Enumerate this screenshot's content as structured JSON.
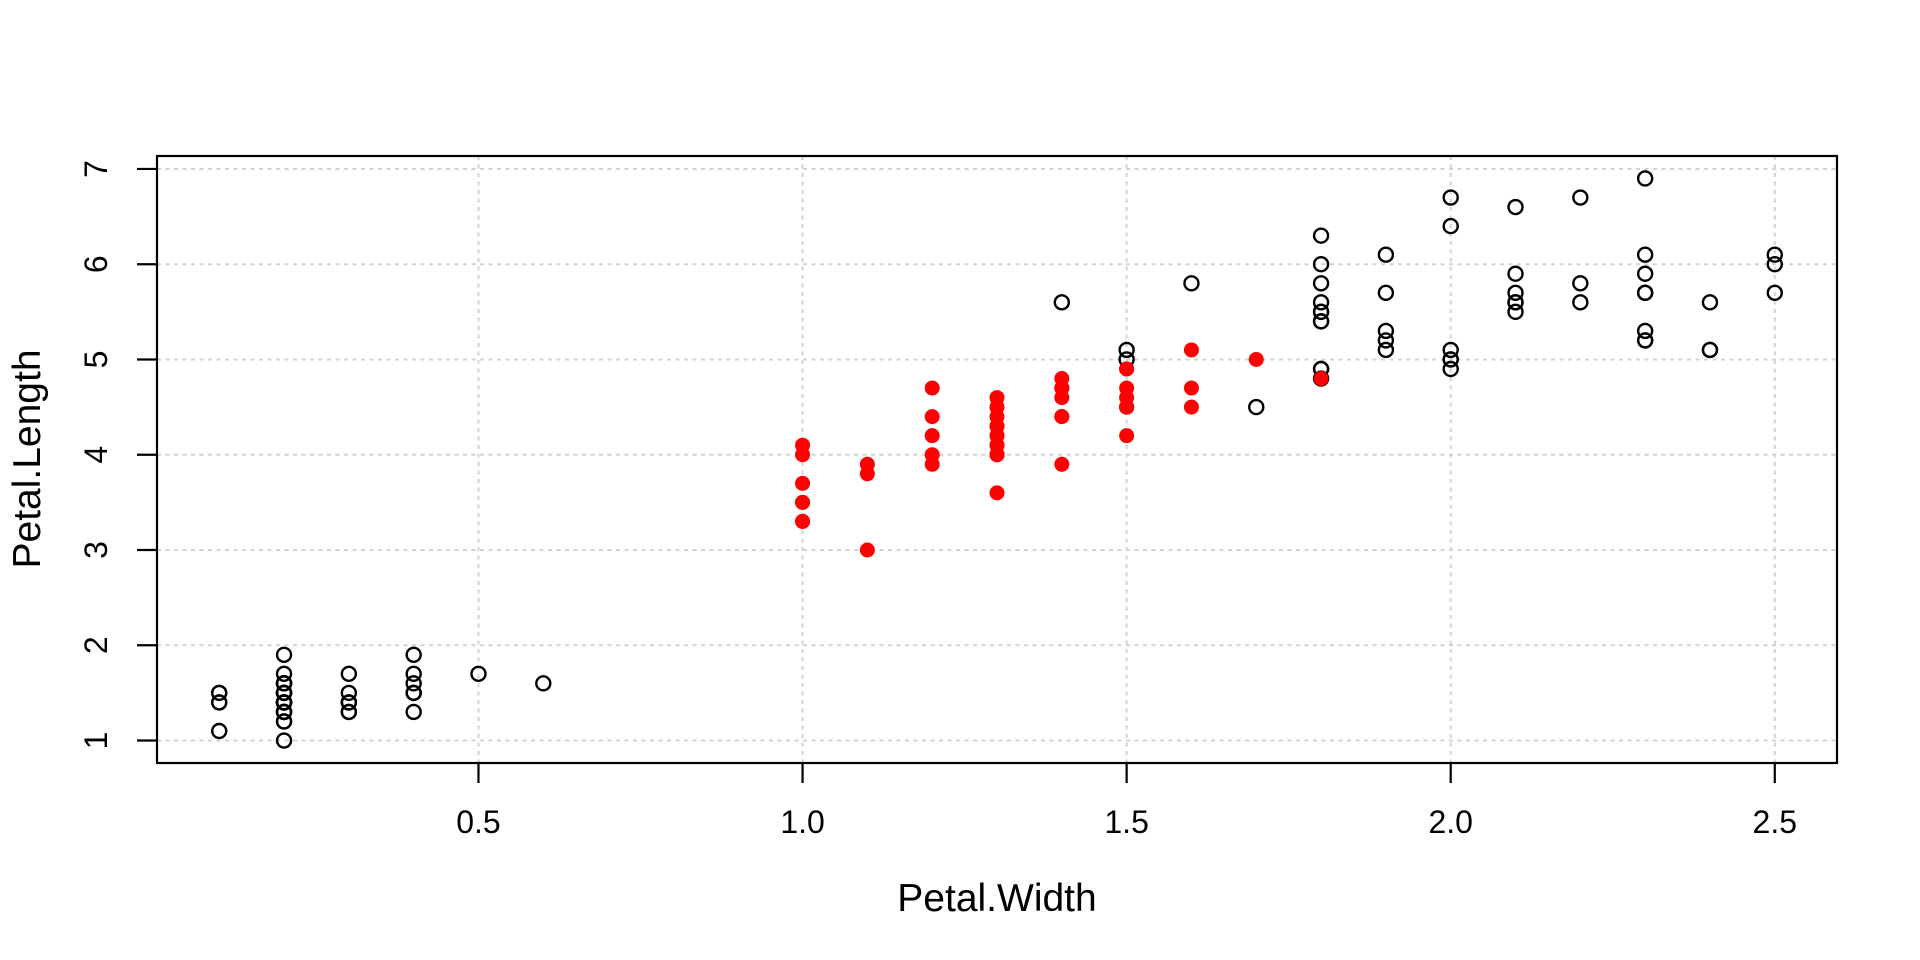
{
  "figure": {
    "background": "#FFFFFF",
    "title": ""
  },
  "chart_data": {
    "type": "scatter",
    "title": "",
    "xlabel": "Petal.Width",
    "ylabel": "Petal.Length",
    "xlim": [
      0.004,
      2.596
    ],
    "ylim": [
      0.764,
      7.136
    ],
    "x_ticks": [
      0.5,
      1.0,
      1.5,
      2.0,
      2.5
    ],
    "x_tick_labels": [
      "0.5",
      "1.0",
      "1.5",
      "2.0",
      "2.5"
    ],
    "y_ticks": [
      1,
      2,
      3,
      4,
      5,
      6,
      7
    ],
    "y_tick_labels": [
      "1",
      "2",
      "3",
      "4",
      "5",
      "6",
      "7"
    ],
    "grid": {
      "visible": true,
      "style": "dashed",
      "color": "#D3D3D3"
    },
    "axis_color": "#000000",
    "legend": {
      "visible": false
    },
    "series": [
      {
        "name": "black-open-circles",
        "marker": "open-circle",
        "color": "#000000",
        "points": [
          [
            0.2,
            1.4
          ],
          [
            0.2,
            1.4
          ],
          [
            0.2,
            1.3
          ],
          [
            0.2,
            1.5
          ],
          [
            0.2,
            1.4
          ],
          [
            0.4,
            1.7
          ],
          [
            0.3,
            1.4
          ],
          [
            0.2,
            1.5
          ],
          [
            0.2,
            1.4
          ],
          [
            0.1,
            1.5
          ],
          [
            0.2,
            1.5
          ],
          [
            0.2,
            1.6
          ],
          [
            0.1,
            1.4
          ],
          [
            0.1,
            1.1
          ],
          [
            0.2,
            1.2
          ],
          [
            0.4,
            1.5
          ],
          [
            0.4,
            1.3
          ],
          [
            0.3,
            1.4
          ],
          [
            0.3,
            1.7
          ],
          [
            0.3,
            1.5
          ],
          [
            0.2,
            1.7
          ],
          [
            0.4,
            1.5
          ],
          [
            0.2,
            1.0
          ],
          [
            0.5,
            1.7
          ],
          [
            0.2,
            1.9
          ],
          [
            0.2,
            1.6
          ],
          [
            0.4,
            1.6
          ],
          [
            0.2,
            1.5
          ],
          [
            0.2,
            1.4
          ],
          [
            0.2,
            1.6
          ],
          [
            0.2,
            1.6
          ],
          [
            0.4,
            1.5
          ],
          [
            0.1,
            1.5
          ],
          [
            0.2,
            1.4
          ],
          [
            0.2,
            1.5
          ],
          [
            0.2,
            1.2
          ],
          [
            0.2,
            1.3
          ],
          [
            0.1,
            1.4
          ],
          [
            0.2,
            1.3
          ],
          [
            0.2,
            1.5
          ],
          [
            0.3,
            1.3
          ],
          [
            0.3,
            1.3
          ],
          [
            0.2,
            1.3
          ],
          [
            0.6,
            1.6
          ],
          [
            0.4,
            1.9
          ],
          [
            0.3,
            1.4
          ],
          [
            0.2,
            1.6
          ],
          [
            0.2,
            1.4
          ],
          [
            0.2,
            1.5
          ],
          [
            0.2,
            1.4
          ],
          [
            2.5,
            6.0
          ],
          [
            1.9,
            5.1
          ],
          [
            2.1,
            5.9
          ],
          [
            1.8,
            5.6
          ],
          [
            2.2,
            5.8
          ],
          [
            2.1,
            6.6
          ],
          [
            1.7,
            4.5
          ],
          [
            1.8,
            6.3
          ],
          [
            1.8,
            5.8
          ],
          [
            2.5,
            6.1
          ],
          [
            2.0,
            5.1
          ],
          [
            1.9,
            5.3
          ],
          [
            2.1,
            5.5
          ],
          [
            2.0,
            5.0
          ],
          [
            2.4,
            5.1
          ],
          [
            2.3,
            5.3
          ],
          [
            1.8,
            5.5
          ],
          [
            2.2,
            6.7
          ],
          [
            2.3,
            6.9
          ],
          [
            1.5,
            5.0
          ],
          [
            2.3,
            5.7
          ],
          [
            2.0,
            4.9
          ],
          [
            2.0,
            6.7
          ],
          [
            1.8,
            4.9
          ],
          [
            2.1,
            5.7
          ],
          [
            1.8,
            6.0
          ],
          [
            1.8,
            4.8
          ],
          [
            1.8,
            4.9
          ],
          [
            2.1,
            5.6
          ],
          [
            1.6,
            5.8
          ],
          [
            1.9,
            6.1
          ],
          [
            2.0,
            6.4
          ],
          [
            2.2,
            5.6
          ],
          [
            1.5,
            5.1
          ],
          [
            1.4,
            5.6
          ],
          [
            2.3,
            6.1
          ],
          [
            2.4,
            5.6
          ],
          [
            1.8,
            5.5
          ],
          [
            1.8,
            5.4
          ],
          [
            2.1,
            5.6
          ],
          [
            2.4,
            5.1
          ],
          [
            2.3,
            5.9
          ],
          [
            1.9,
            5.7
          ],
          [
            2.3,
            5.2
          ],
          [
            2.5,
            5.7
          ],
          [
            2.3,
            5.7
          ],
          [
            1.9,
            5.2
          ],
          [
            2.0,
            5.0
          ],
          [
            2.3,
            5.2
          ],
          [
            1.8,
            5.4
          ]
        ]
      },
      {
        "name": "red-filled-circles",
        "marker": "filled-circle",
        "color": "#FE0000",
        "points": [
          [
            1.4,
            4.7
          ],
          [
            1.5,
            4.5
          ],
          [
            1.5,
            4.9
          ],
          [
            1.3,
            4.0
          ],
          [
            1.5,
            4.6
          ],
          [
            1.3,
            4.5
          ],
          [
            1.6,
            4.7
          ],
          [
            1.0,
            3.3
          ],
          [
            1.3,
            4.6
          ],
          [
            1.4,
            3.9
          ],
          [
            1.0,
            3.5
          ],
          [
            1.5,
            4.2
          ],
          [
            1.0,
            4.0
          ],
          [
            1.4,
            4.7
          ],
          [
            1.3,
            3.6
          ],
          [
            1.4,
            4.4
          ],
          [
            1.5,
            4.5
          ],
          [
            1.0,
            4.1
          ],
          [
            1.5,
            4.5
          ],
          [
            1.1,
            3.9
          ],
          [
            1.8,
            4.8
          ],
          [
            1.3,
            4.0
          ],
          [
            1.5,
            4.9
          ],
          [
            1.2,
            4.7
          ],
          [
            1.3,
            4.3
          ],
          [
            1.4,
            4.4
          ],
          [
            1.4,
            4.8
          ],
          [
            1.7,
            5.0
          ],
          [
            1.5,
            4.5
          ],
          [
            1.0,
            3.5
          ],
          [
            1.1,
            3.8
          ],
          [
            1.0,
            3.7
          ],
          [
            1.2,
            3.9
          ],
          [
            1.6,
            5.1
          ],
          [
            1.5,
            4.5
          ],
          [
            1.6,
            4.5
          ],
          [
            1.5,
            4.7
          ],
          [
            1.3,
            4.4
          ],
          [
            1.3,
            4.1
          ],
          [
            1.3,
            4.0
          ],
          [
            1.2,
            4.4
          ],
          [
            1.4,
            4.6
          ],
          [
            1.2,
            4.0
          ],
          [
            1.0,
            3.3
          ],
          [
            1.3,
            4.2
          ],
          [
            1.2,
            4.2
          ],
          [
            1.3,
            4.2
          ],
          [
            1.3,
            4.3
          ],
          [
            1.1,
            3.0
          ],
          [
            1.3,
            4.1
          ]
        ]
      }
    ]
  }
}
